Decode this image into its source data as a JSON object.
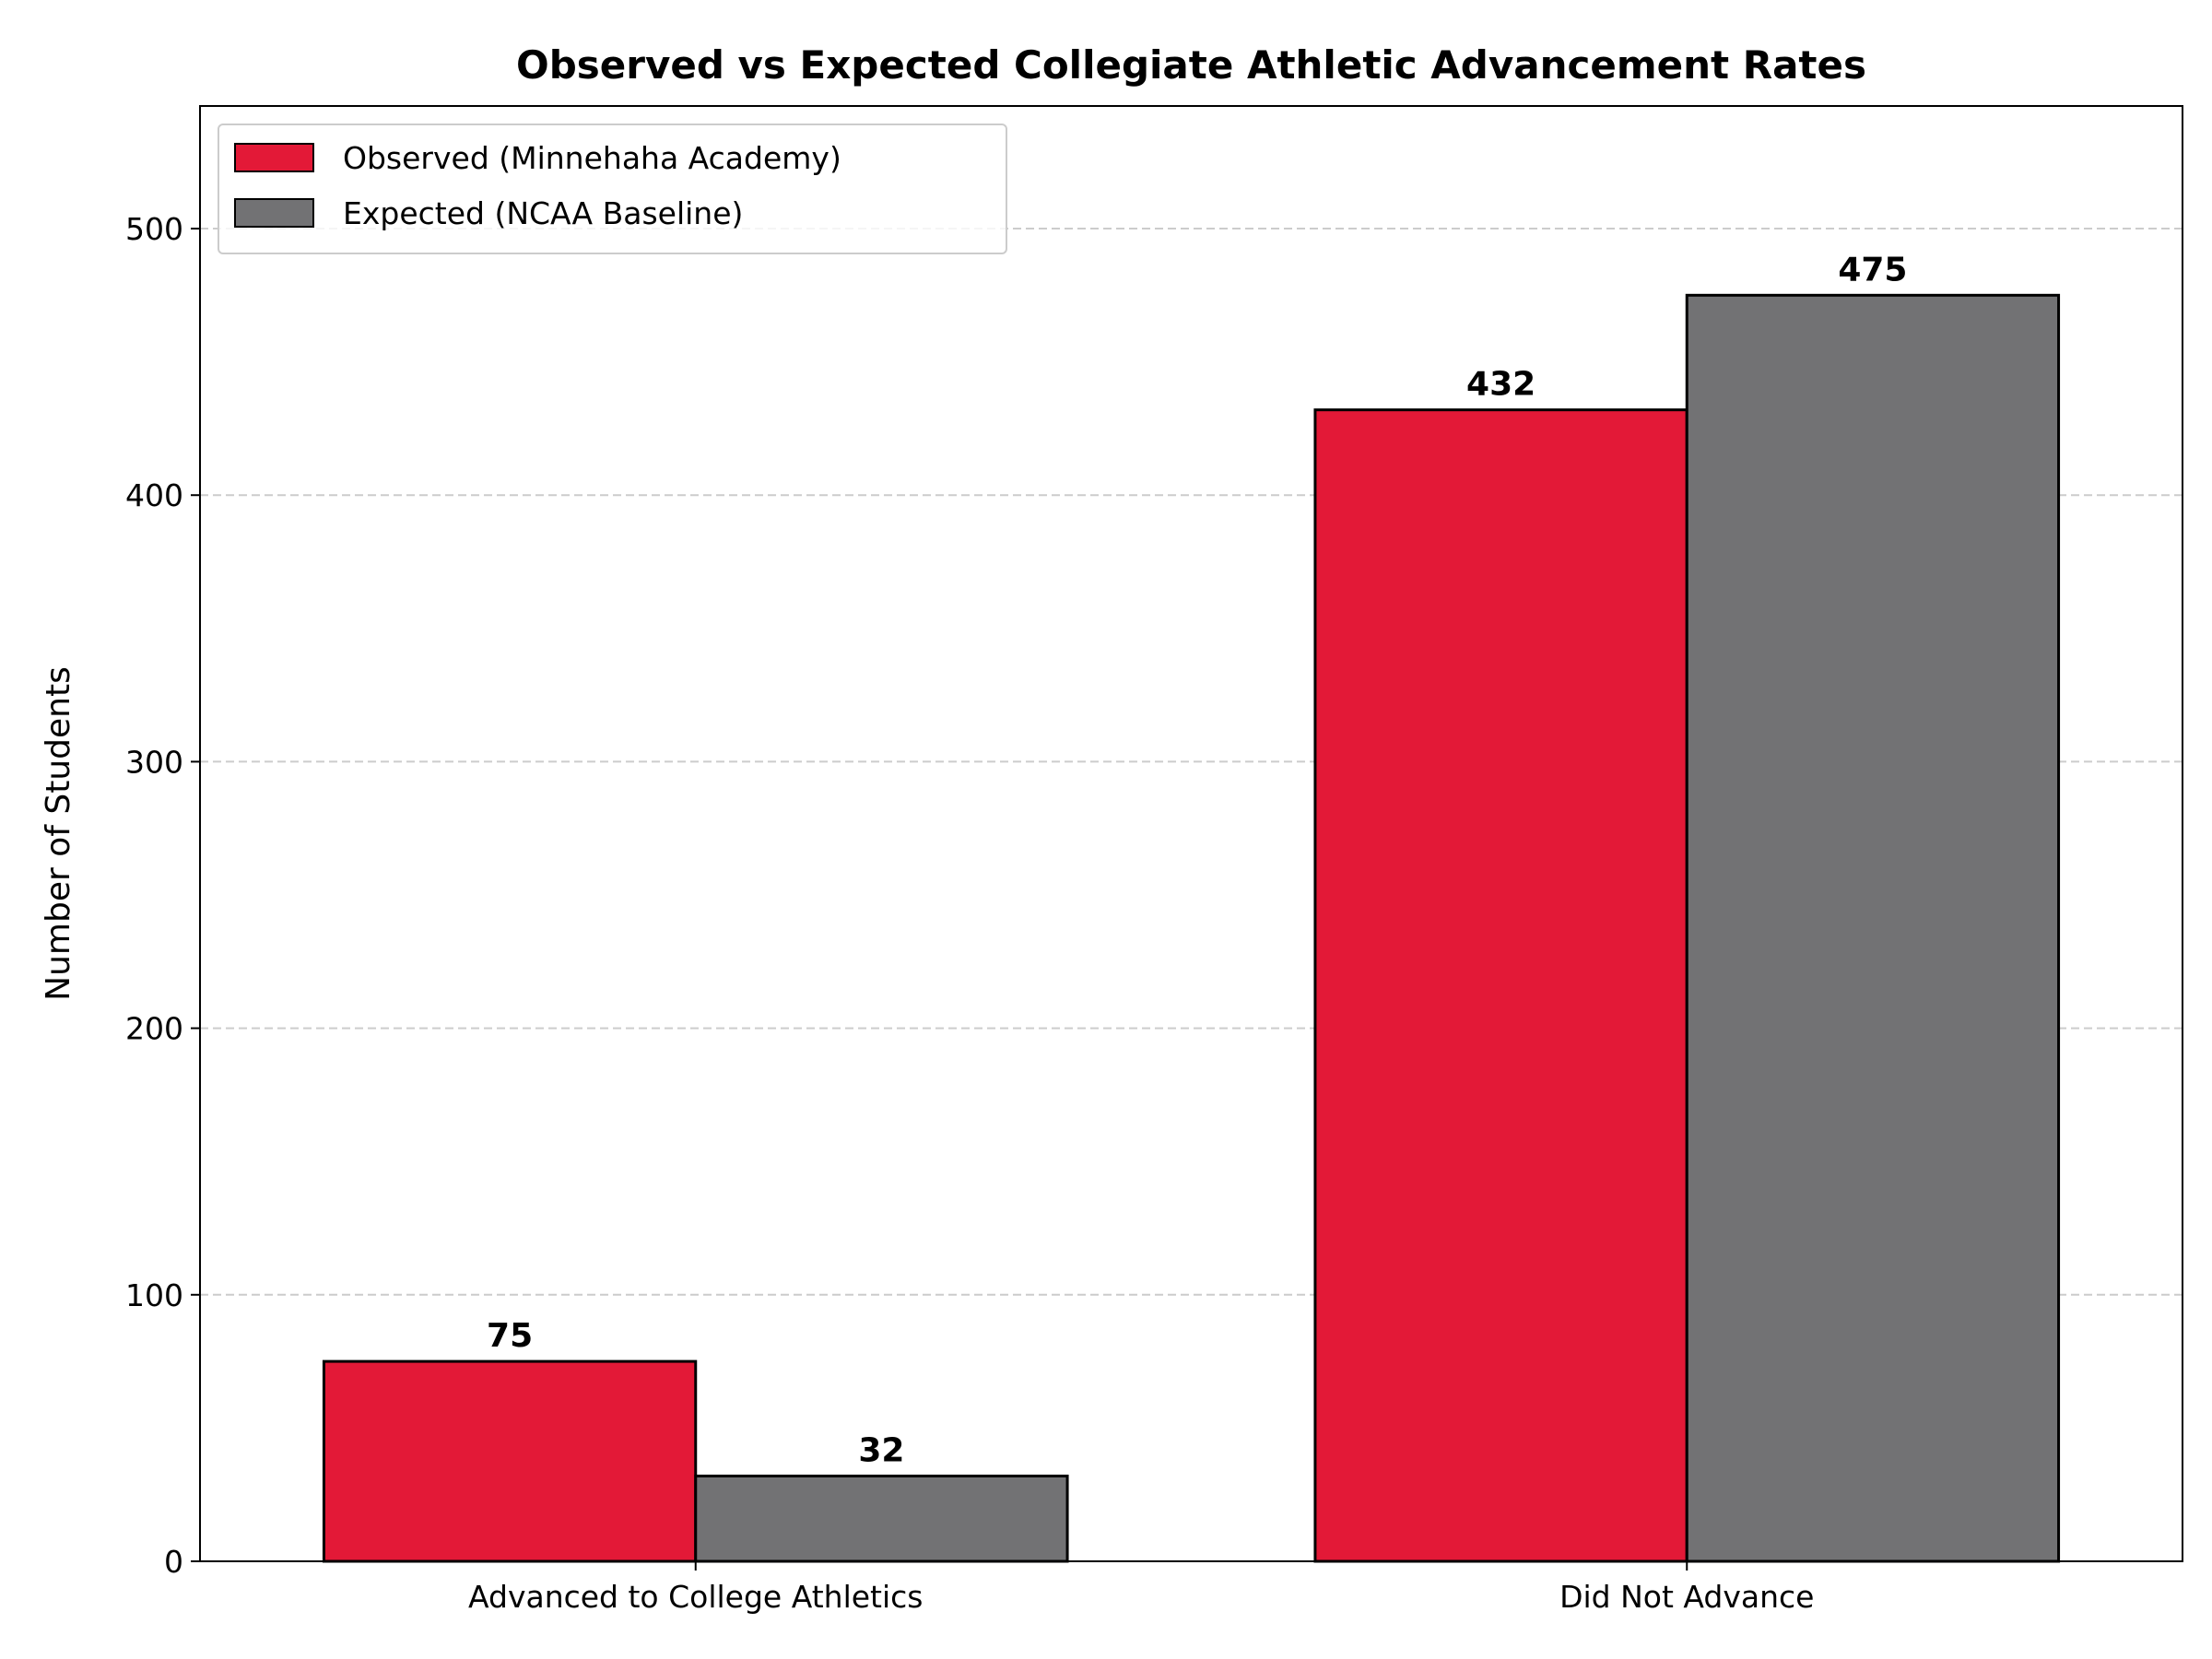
{
  "chart_data": {
    "type": "bar",
    "title": "Observed vs Expected Collegiate Athletic Advancement Rates",
    "xlabel": "",
    "ylabel": "Number of Students",
    "categories": [
      "Advanced to College Athletics",
      "Did Not Advance"
    ],
    "series": [
      {
        "name": "Observed (Minnehaha Academy)",
        "values": [
          75,
          432
        ],
        "color": "#e31937"
      },
      {
        "name": "Expected (NCAA Baseline)",
        "values": [
          32,
          475
        ],
        "color": "#727274"
      }
    ],
    "ylim": [
      0,
      546
    ],
    "yticks": [
      0,
      100,
      200,
      300,
      400,
      500
    ],
    "grid": "y-dashed",
    "legend": "top-left"
  }
}
